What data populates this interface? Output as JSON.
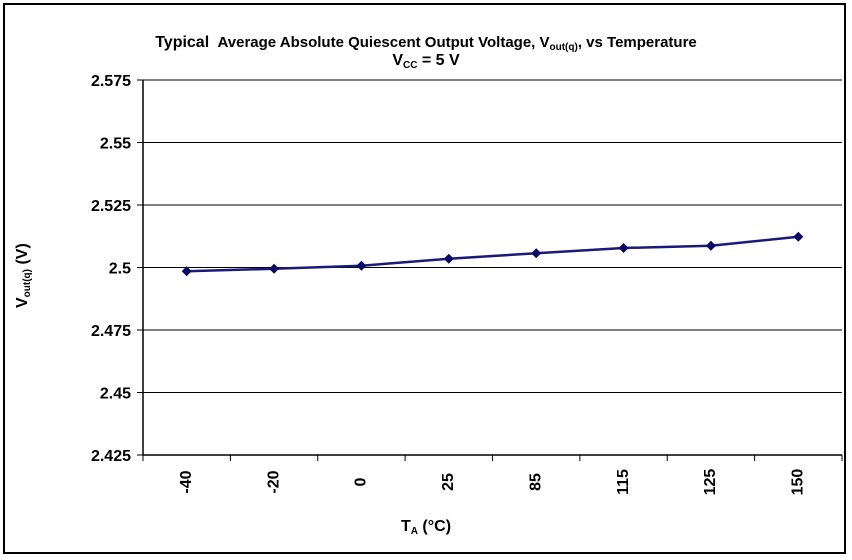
{
  "chart_data": {
    "type": "line",
    "title_lead": "Typical",
    "title_main": "Average Absolute Quiescent Output Voltage, V",
    "title_sub": "out(q)",
    "title_tail": ", vs Temperature",
    "subtitle_main": "V",
    "subtitle_sub": "CC",
    "subtitle_tail": " = 5 V",
    "ylabel_main": "V",
    "ylabel_sub": "out(q)",
    "ylabel_tail": " (V)",
    "xlabel_main": "T",
    "xlabel_sub": "A",
    "xlabel_tail": " (°C)",
    "categories": [
      "-40",
      "-20",
      "0",
      "25",
      "85",
      "115",
      "125",
      "150"
    ],
    "series": [
      {
        "values": [
          2.4985,
          2.4995,
          2.5007,
          2.5035,
          2.5057,
          2.5078,
          2.5087,
          2.5123
        ]
      }
    ],
    "ylim": [
      2.425,
      2.575
    ],
    "yticks": [
      "2.425",
      "2.45",
      "2.475",
      "2.5",
      "2.525",
      "2.55",
      "2.575"
    ],
    "grid": true,
    "line_color": "#1a1a7a",
    "marker_color": "#0a0a66"
  }
}
